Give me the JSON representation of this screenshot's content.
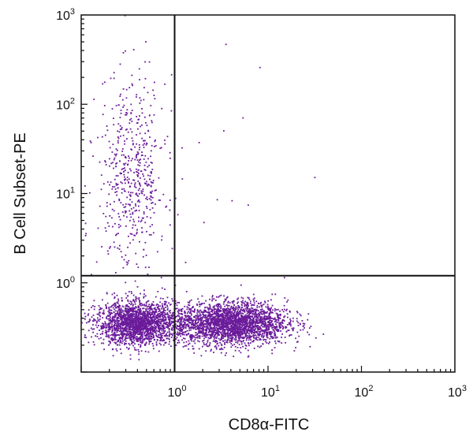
{
  "chart_data": {
    "type": "scatter",
    "title": "",
    "xlabel": "CD8α-FITC",
    "ylabel": "B Cell Subset-PE",
    "x_scale": "log",
    "y_scale": "log",
    "xlim": [
      0.1,
      1000
    ],
    "ylim": [
      0.1,
      1000
    ],
    "x_ticks": [
      {
        "value": 1,
        "base": "10",
        "exp": "0"
      },
      {
        "value": 10,
        "base": "10",
        "exp": "1"
      },
      {
        "value": 100,
        "base": "10",
        "exp": "2"
      },
      {
        "value": 1000,
        "base": "10",
        "exp": "3"
      }
    ],
    "y_ticks": [
      {
        "value": 1,
        "base": "10",
        "exp": "0"
      },
      {
        "value": 10,
        "base": "10",
        "exp": "1"
      },
      {
        "value": 100,
        "base": "10",
        "exp": "2"
      },
      {
        "value": 1000,
        "base": "10",
        "exp": "3"
      }
    ],
    "quadrant_gates": {
      "x": 1.0,
      "y": 1.2
    },
    "grid": false,
    "point_color": "#6a1b9a",
    "populations": [
      {
        "x_center": 0.4,
        "y_center": 0.35,
        "x_spread": 0.22,
        "y_spread": 0.12,
        "count": 2000
      },
      {
        "x_center": 4.0,
        "y_center": 0.35,
        "x_spread": 0.3,
        "y_spread": 0.12,
        "count": 2600
      },
      {
        "x_center": 0.35,
        "y_center": 15,
        "x_spread": 0.18,
        "y_spread": 0.55,
        "count": 550
      },
      {
        "x_center": 3.0,
        "y_center": 20,
        "x_spread": 0.4,
        "y_spread": 0.5,
        "count": 12
      }
    ]
  }
}
